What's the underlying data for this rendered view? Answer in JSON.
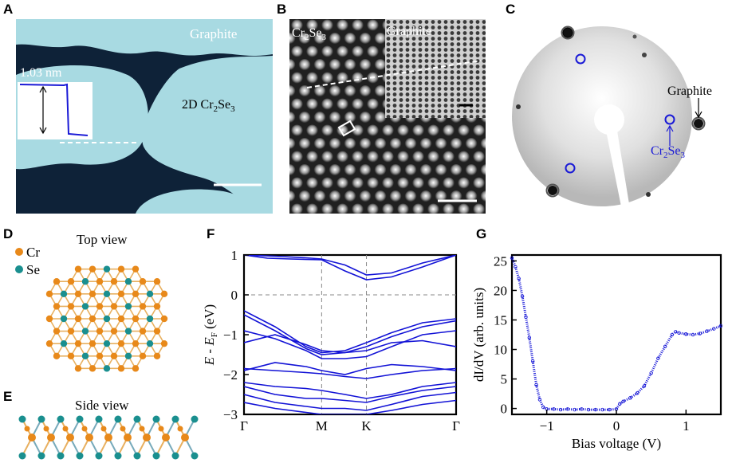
{
  "panels": {
    "A": {
      "letter": "A",
      "label_graphite": "Graphite",
      "label_material": "2D Cr",
      "label_material_sub1": "2",
      "label_material_mid": "Se",
      "label_material_sub2": "3",
      "inset_height": "1.03 nm"
    },
    "B": {
      "letter": "B",
      "label_material": "Cr",
      "label_sub1": "2",
      "label_mid": "Se",
      "label_sub2": "3",
      "label_graphite": "Graphite"
    },
    "C": {
      "letter": "C",
      "label_graphite": "Graphite",
      "label_material": "Cr",
      "label_sub1": "2",
      "label_mid": "Se",
      "label_sub2": "3"
    },
    "D": {
      "letter": "D",
      "title": "Top view",
      "legend": [
        "Cr",
        "Se"
      ]
    },
    "E": {
      "letter": "E",
      "title": "Side view"
    },
    "F": {
      "letter": "F"
    },
    "G": {
      "letter": "G"
    }
  },
  "colors": {
    "cr_atom": "#e8891a",
    "se_atom": "#1a8f8f",
    "band": "#1212d6",
    "diffraction_blue": "#1a1ad6",
    "stm_light": "#a8dae2",
    "stm_dark": "#0e2238"
  },
  "chart_data": [
    {
      "type": "line",
      "panel": "F",
      "title": "",
      "ylabel": "E - E_F (eV)",
      "ylabel_parts": [
        "E",
        " - ",
        "E",
        "F",
        " (eV)"
      ],
      "xlabel": "",
      "ylim": [
        -3,
        1
      ],
      "yticks": [
        1,
        0,
        -1,
        -2,
        -3
      ],
      "xticks": [
        "Γ",
        "M",
        "K",
        "Γ"
      ],
      "kpoints": [
        0,
        1,
        1.577,
        2.732
      ],
      "series": [
        {
          "name": "band1",
          "x": [
            0,
            0.3,
            0.6,
            1,
            1.3,
            1.577,
            1.9,
            2.3,
            2.732
          ],
          "values": [
            1.0,
            0.92,
            0.9,
            0.88,
            0.6,
            0.38,
            0.45,
            0.7,
            1.0
          ]
        },
        {
          "name": "band2",
          "x": [
            0,
            0.4,
            0.8,
            1,
            1.3,
            1.577,
            1.9,
            2.3,
            2.732
          ],
          "values": [
            1.0,
            0.97,
            0.93,
            0.9,
            0.75,
            0.5,
            0.55,
            0.8,
            1.0
          ]
        },
        {
          "name": "band3",
          "x": [
            0,
            0.4,
            0.8,
            1,
            1.3,
            1.577,
            1.9,
            2.3,
            2.732
          ],
          "values": [
            -0.4,
            -0.8,
            -1.3,
            -1.45,
            -1.4,
            -1.2,
            -0.95,
            -0.7,
            -0.6
          ]
        },
        {
          "name": "band4",
          "x": [
            0,
            0.4,
            0.8,
            1,
            1.3,
            1.577,
            1.9,
            2.3,
            2.732
          ],
          "values": [
            -0.5,
            -0.9,
            -1.35,
            -1.5,
            -1.45,
            -1.3,
            -1.05,
            -0.8,
            -0.65
          ]
        },
        {
          "name": "band5",
          "x": [
            0,
            0.4,
            0.8,
            1,
            1.3,
            1.577,
            1.9,
            2.3,
            2.732
          ],
          "values": [
            -0.9,
            -1.1,
            -1.4,
            -1.6,
            -1.6,
            -1.55,
            -1.3,
            -1.0,
            -0.9
          ]
        },
        {
          "name": "band6",
          "x": [
            0,
            0.4,
            0.8,
            1,
            1.3,
            1.577,
            1.9,
            2.3,
            2.732
          ],
          "values": [
            -1.2,
            -1.0,
            -1.25,
            -1.4,
            -1.45,
            -1.4,
            -1.2,
            -1.15,
            -1.3
          ]
        },
        {
          "name": "band7",
          "x": [
            0,
            0.4,
            0.8,
            1,
            1.3,
            1.577,
            1.9,
            2.3,
            2.732
          ],
          "values": [
            -1.85,
            -1.9,
            -1.95,
            -1.98,
            -2.05,
            -2.1,
            -2.0,
            -1.9,
            -1.85
          ]
        },
        {
          "name": "band8",
          "x": [
            0,
            0.4,
            0.8,
            1,
            1.3,
            1.577,
            1.9,
            2.3,
            2.732
          ],
          "values": [
            -1.9,
            -1.7,
            -1.8,
            -1.9,
            -2.0,
            -1.85,
            -1.75,
            -1.8,
            -1.9
          ]
        },
        {
          "name": "band9",
          "x": [
            0,
            0.4,
            0.8,
            1,
            1.3,
            1.577,
            1.9,
            2.3,
            2.732
          ],
          "values": [
            -2.2,
            -2.3,
            -2.35,
            -2.4,
            -2.5,
            -2.6,
            -2.5,
            -2.3,
            -2.2
          ]
        },
        {
          "name": "band10",
          "x": [
            0,
            0.4,
            0.8,
            1,
            1.3,
            1.577,
            1.9,
            2.3,
            2.732
          ],
          "values": [
            -2.3,
            -2.5,
            -2.6,
            -2.6,
            -2.65,
            -2.7,
            -2.55,
            -2.4,
            -2.3
          ]
        },
        {
          "name": "band11",
          "x": [
            0,
            0.4,
            0.8,
            1,
            1.3,
            1.577,
            1.9,
            2.3,
            2.732
          ],
          "values": [
            -2.5,
            -2.7,
            -2.8,
            -2.85,
            -2.85,
            -2.9,
            -2.75,
            -2.55,
            -2.45
          ]
        },
        {
          "name": "band12",
          "x": [
            0,
            0.4,
            0.8,
            1,
            1.3,
            1.577,
            1.9,
            2.3,
            2.732
          ],
          "values": [
            -2.7,
            -2.85,
            -2.95,
            -3.0,
            -3.0,
            -3.0,
            -2.9,
            -2.75,
            -2.65
          ]
        }
      ]
    },
    {
      "type": "scatter",
      "panel": "G",
      "xlabel": "Bias voltage (V)",
      "ylabel": "dI/dV (arb. units)",
      "xlim": [
        -1.5,
        1.5
      ],
      "ylim": [
        -1,
        26
      ],
      "xticks": [
        -1,
        0,
        1
      ],
      "yticks": [
        0,
        5,
        10,
        15,
        20,
        25
      ],
      "x": [
        -1.5,
        -1.45,
        -1.4,
        -1.35,
        -1.3,
        -1.25,
        -1.2,
        -1.15,
        -1.1,
        -1.05,
        -1.0,
        -0.9,
        -0.8,
        -0.7,
        -0.6,
        -0.5,
        -0.4,
        -0.3,
        -0.2,
        -0.1,
        0.0,
        0.05,
        0.1,
        0.2,
        0.3,
        0.4,
        0.5,
        0.6,
        0.7,
        0.8,
        0.85,
        0.9,
        1.0,
        1.1,
        1.2,
        1.3,
        1.4,
        1.5
      ],
      "values": [
        25.5,
        24,
        22,
        19,
        15.5,
        12,
        8,
        4,
        1.5,
        0.2,
        -0.1,
        -0.1,
        -0.2,
        -0.1,
        -0.2,
        -0.1,
        -0.2,
        -0.2,
        -0.2,
        -0.2,
        -0.1,
        0.8,
        1.2,
        1.8,
        2.6,
        3.8,
        6,
        8.5,
        10.5,
        12.5,
        13,
        12.8,
        12.6,
        12.5,
        12.7,
        13.1,
        13.5,
        14
      ]
    }
  ]
}
